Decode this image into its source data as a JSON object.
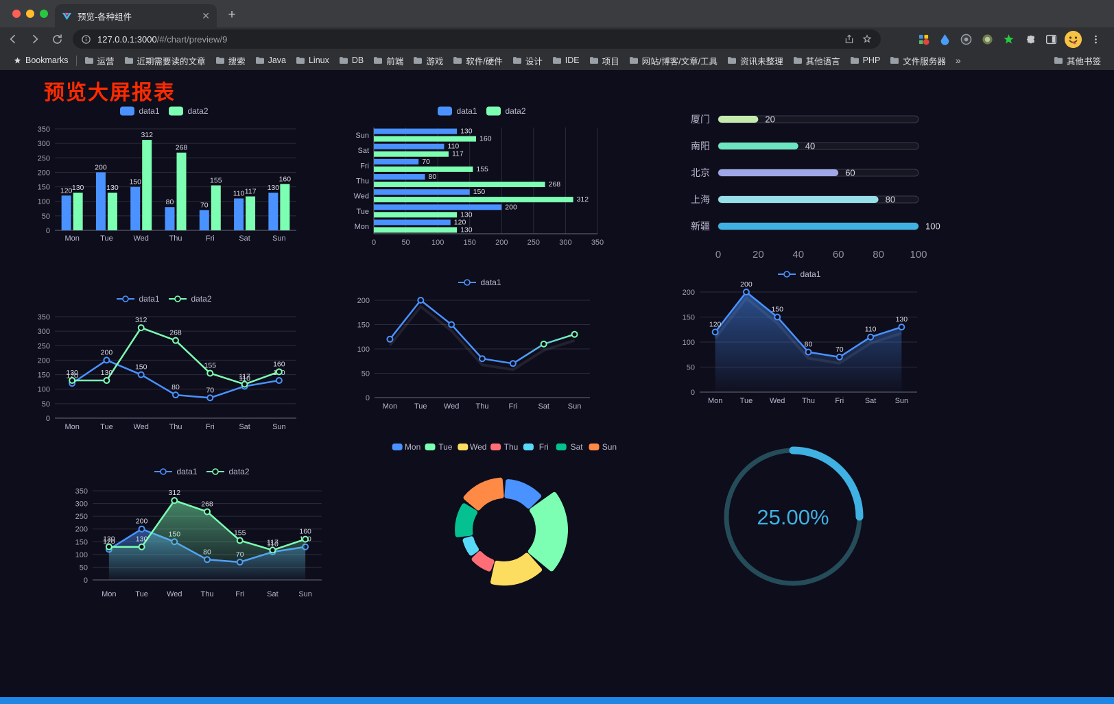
{
  "browser": {
    "traffic_lights": [
      "#ff5f57",
      "#febc2e",
      "#28c840"
    ],
    "tab_title": "预览-各种组件",
    "url_host": "127.0.0.1:3000",
    "url_path": "/#/chart/preview/9",
    "bookmarks_bar": {
      "star_label": "Bookmarks",
      "folders": [
        "运营",
        "近期需要读的文章",
        "搜索",
        "Java",
        "Linux",
        "DB",
        "前端",
        "游戏",
        "软件/硬件",
        "设计",
        "IDE",
        "项目",
        "网站/博客/文章/工具",
        "资讯未整理",
        "其他语言",
        "PHP",
        "文件服务器"
      ],
      "overflow": "»",
      "other": "其他书签"
    }
  },
  "page": {
    "title": "预览大屏报表",
    "title_color": "#ff2b00",
    "accent_bar_color": "#1e86e5",
    "background": "#0e0d1b"
  },
  "palette": {
    "blue": "#4992ff",
    "green": "#7cffb2",
    "yellow": "#fddd60",
    "red": "#ff6e76",
    "lightblue": "#58d9f9",
    "teal": "#05c091",
    "orange": "#ff8a45"
  },
  "chart_data": [
    {
      "id": "bar-grouped",
      "type": "bar",
      "legend": [
        "data1",
        "data2"
      ],
      "categories": [
        "Mon",
        "Tue",
        "Wed",
        "Thu",
        "Fri",
        "Sat",
        "Sun"
      ],
      "series": [
        {
          "name": "data1",
          "color": "#4992ff",
          "values": [
            120,
            200,
            150,
            80,
            70,
            110,
            130
          ]
        },
        {
          "name": "data2",
          "color": "#7cffb2",
          "values": [
            130,
            130,
            312,
            268,
            155,
            117,
            160
          ]
        }
      ],
      "ylim": [
        0,
        350
      ],
      "yticks": [
        0,
        50,
        100,
        150,
        200,
        250,
        300,
        350
      ],
      "value_labels": true,
      "grid": true
    },
    {
      "id": "bar-horizontal",
      "type": "hbar",
      "legend": [
        "data1",
        "data2"
      ],
      "categories": [
        "Mon",
        "Tue",
        "Wed",
        "Thu",
        "Fri",
        "Sat",
        "Sun"
      ],
      "series": [
        {
          "name": "data1",
          "color": "#4992ff",
          "values": [
            120,
            200,
            150,
            80,
            70,
            110,
            130
          ]
        },
        {
          "name": "data2",
          "color": "#7cffb2",
          "values": [
            130,
            130,
            312,
            268,
            155,
            117,
            160
          ]
        }
      ],
      "xlim": [
        0,
        350
      ],
      "xticks": [
        0,
        50,
        100,
        150,
        200,
        250,
        300,
        350
      ],
      "value_labels": true,
      "grid": true
    },
    {
      "id": "progress-list",
      "type": "progress-list",
      "rows": [
        {
          "label": "厦门",
          "value": 20,
          "color": "#c4ebad"
        },
        {
          "label": "南阳",
          "value": 40,
          "color": "#6be6c1"
        },
        {
          "label": "北京",
          "value": 60,
          "color": "#a0a7e6"
        },
        {
          "label": "上海",
          "value": 80,
          "color": "#96dee8"
        },
        {
          "label": "新疆",
          "value": 100,
          "color": "#3fb1e3"
        }
      ],
      "xlim": [
        0,
        100
      ],
      "xticks": [
        0,
        20,
        40,
        60,
        80,
        100
      ]
    },
    {
      "id": "line-two",
      "type": "line",
      "legend": [
        "data1",
        "data2"
      ],
      "categories": [
        "Mon",
        "Tue",
        "Wed",
        "Thu",
        "Fri",
        "Sat",
        "Sun"
      ],
      "series": [
        {
          "name": "data1",
          "color": "#4992ff",
          "values": [
            120,
            200,
            150,
            80,
            70,
            110,
            130
          ]
        },
        {
          "name": "data2",
          "color": "#7cffb2",
          "values": [
            130,
            130,
            312,
            268,
            155,
            117,
            160
          ]
        }
      ],
      "ylim": [
        0,
        350
      ],
      "yticks": [
        0,
        50,
        100,
        150,
        200,
        250,
        300,
        350
      ],
      "value_labels": true
    },
    {
      "id": "line-gradient",
      "type": "line",
      "legend": [
        "data1"
      ],
      "categories": [
        "Mon",
        "Tue",
        "Wed",
        "Thu",
        "Fri",
        "Sat",
        "Sun"
      ],
      "series": [
        {
          "name": "data1",
          "color": "#4992ff",
          "color_end": "#7cffb2",
          "values": [
            120,
            200,
            150,
            80,
            70,
            110,
            130
          ]
        }
      ],
      "ylim": [
        0,
        200
      ],
      "yticks": [
        0,
        50,
        100,
        150,
        200
      ],
      "value_labels": false,
      "shadow": true
    },
    {
      "id": "area-single",
      "type": "line",
      "legend": [
        "data1"
      ],
      "categories": [
        "Mon",
        "Tue",
        "Wed",
        "Thu",
        "Fri",
        "Sat",
        "Sun"
      ],
      "series": [
        {
          "name": "data1",
          "color": "#4992ff",
          "area": true,
          "values": [
            120,
            200,
            150,
            80,
            70,
            110,
            130
          ]
        }
      ],
      "ylim": [
        0,
        200
      ],
      "yticks": [
        0,
        50,
        100,
        150,
        200
      ],
      "value_labels": true,
      "shadow": true
    },
    {
      "id": "area-two",
      "type": "line",
      "legend": [
        "data1",
        "data2"
      ],
      "categories": [
        "Mon",
        "Tue",
        "Wed",
        "Thu",
        "Fri",
        "Sat",
        "Sun"
      ],
      "series": [
        {
          "name": "data1",
          "color": "#4992ff",
          "area": true,
          "values": [
            120,
            200,
            150,
            80,
            70,
            110,
            130
          ]
        },
        {
          "name": "data2",
          "color": "#7cffb2",
          "area": true,
          "values": [
            130,
            130,
            312,
            268,
            155,
            117,
            160
          ]
        }
      ],
      "ylim": [
        0,
        350
      ],
      "yticks": [
        0,
        50,
        100,
        150,
        200,
        250,
        300,
        350
      ],
      "value_labels": true
    },
    {
      "id": "rose-pie",
      "type": "pie",
      "legend": [
        "Mon",
        "Tue",
        "Wed",
        "Thu",
        "Fri",
        "Sat",
        "Sun"
      ],
      "categories": [
        "Mon",
        "Tue",
        "Wed",
        "Thu",
        "Fri",
        "Sat",
        "Sun"
      ],
      "values": [
        120,
        200,
        150,
        80,
        70,
        110,
        130
      ],
      "colors": [
        "#4992ff",
        "#7cffb2",
        "#fddd60",
        "#ff6e76",
        "#58d9f9",
        "#05c091",
        "#ff8a45"
      ],
      "rose": true,
      "donut": true
    },
    {
      "id": "progress-ring",
      "type": "gauge",
      "value": 25,
      "display": "25.00%",
      "color": "#3fb1e3",
      "track_color": "#254c59"
    }
  ]
}
